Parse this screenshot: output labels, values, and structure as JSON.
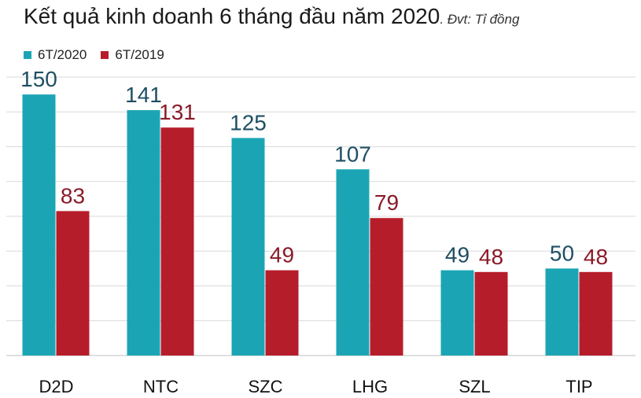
{
  "title": "Kết quả kinh doanh 6 tháng đầu năm 2020",
  "subtitle": ". Đvt: Tỉ đồng",
  "colors": {
    "series_2020": "#1ba5b4",
    "series_2019": "#b61d2b",
    "label_2020": "#1e4f63",
    "label_2019": "#8a1a28",
    "grid": "#d9d9d9"
  },
  "legend": [
    {
      "label": "6T/2020"
    },
    {
      "label": "6T/2019"
    }
  ],
  "chart_data": {
    "type": "bar",
    "title": "Kết quả kinh doanh 6 tháng đầu năm 2020",
    "unit_note": "Đvt: Tỉ đồng",
    "categories": [
      "D2D",
      "NTC",
      "SZC",
      "LHG",
      "SZL",
      "TIP"
    ],
    "series": [
      {
        "name": "6T/2020",
        "values": [
          150,
          141,
          125,
          107,
          49,
          50
        ]
      },
      {
        "name": "6T/2019",
        "values": [
          83,
          131,
          49,
          79,
          48,
          48
        ]
      }
    ],
    "ylim": [
      0,
      160
    ],
    "grid": true,
    "legend_position": "top-left"
  }
}
